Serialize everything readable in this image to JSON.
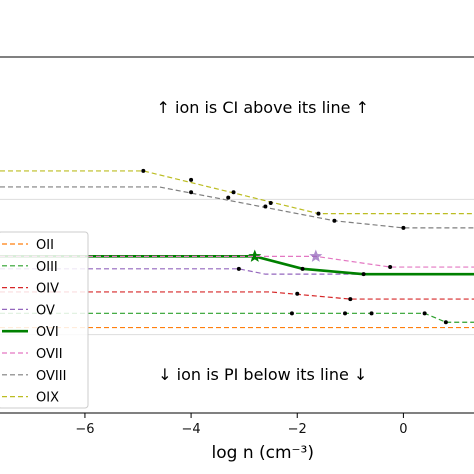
{
  "chart_data": {
    "type": "line",
    "title": "",
    "xlabel": "log n (cm⁻³)",
    "ylabel": "",
    "xlim": [
      -7.6,
      1.33
    ],
    "ylim": [
      0,
      100
    ],
    "xticks": [
      -6,
      -4,
      -2,
      0
    ],
    "xtick_labels": [
      "−6",
      "−4",
      "−2",
      "0"
    ],
    "grid": false,
    "legend_position": "lower-left",
    "annotations": [
      {
        "text": "↑  ion is CI above its line  ↑",
        "x": -2.65,
        "y": 86
      },
      {
        "text": "↓  ion is PI below its line  ↓",
        "x": -2.65,
        "y": 11
      }
    ],
    "reference_lines": [
      {
        "y": 60,
        "color": "#dddddd"
      },
      {
        "y": 22,
        "color": "#dddddd"
      }
    ],
    "series": [
      {
        "name": "OII",
        "color": "#ff7f0e",
        "width": 1.2,
        "dash": "5,3",
        "legend_marker": false,
        "x": [
          -7.6,
          1.33
        ],
        "y": [
          24,
          24
        ],
        "dots": [],
        "stars": []
      },
      {
        "name": "OIII",
        "color": "#2ca02c",
        "width": 1.2,
        "dash": "5,3",
        "legend_marker": false,
        "x": [
          -7.6,
          0.4,
          0.8,
          1.33
        ],
        "y": [
          28,
          28,
          25.5,
          25.5
        ],
        "dots": [
          [
            -2.1,
            28
          ],
          [
            -1.1,
            28
          ],
          [
            -0.6,
            28
          ],
          [
            0.4,
            28
          ],
          [
            0.8,
            25.5
          ]
        ],
        "stars": []
      },
      {
        "name": "OIV",
        "color": "#d62728",
        "width": 1.2,
        "dash": "5,3",
        "legend_marker": false,
        "x": [
          -7.6,
          -2.5,
          -1.0,
          1.33
        ],
        "y": [
          34,
          34,
          32,
          32
        ],
        "dots": [
          [
            -2.0,
            33.5
          ],
          [
            -1.0,
            32
          ]
        ],
        "stars": []
      },
      {
        "name": "OV",
        "color": "#9467bd",
        "width": 1.2,
        "dash": "5,3",
        "legend_marker": false,
        "x": [
          -7.6,
          -3.1,
          -2.6,
          1.33
        ],
        "y": [
          40.5,
          40.5,
          39,
          39
        ],
        "dots": [
          [
            -3.1,
            40.5
          ]
        ],
        "stars": []
      },
      {
        "name": "OVI",
        "color": "#008000",
        "width": 2.6,
        "dash": "",
        "legend_marker": false,
        "x": [
          -7.6,
          -2.8,
          -1.9,
          -0.75,
          1.33
        ],
        "y": [
          44,
          44,
          40.5,
          39,
          39
        ],
        "dots": [
          [
            -1.9,
            40.5
          ],
          [
            -0.75,
            39
          ]
        ],
        "stars": [
          [
            -2.8,
            44,
            "#008000"
          ]
        ]
      },
      {
        "name": "OVII",
        "color": "#e377c2",
        "width": 1.2,
        "dash": "5,3",
        "legend_marker": false,
        "x": [
          -7.6,
          -2.8,
          -1.65,
          -0.25,
          1.33
        ],
        "y": [
          44,
          44,
          44,
          41,
          41
        ],
        "dots": [
          [
            -0.25,
            41
          ]
        ],
        "stars": [
          [
            -1.65,
            44,
            "#9467bd"
          ]
        ]
      },
      {
        "name": "OVIII",
        "color": "#7f7f7f",
        "width": 1.2,
        "dash": "5,3",
        "legend_marker": false,
        "x": [
          -7.6,
          -4.6,
          -1.3,
          0,
          1.33
        ],
        "y": [
          63.5,
          63.5,
          54,
          52,
          52
        ],
        "dots": [
          [
            -4.0,
            62
          ],
          [
            -3.3,
            60.5
          ],
          [
            -2.6,
            58
          ],
          [
            -1.3,
            54
          ],
          [
            0,
            52
          ]
        ],
        "stars": []
      },
      {
        "name": "OIX",
        "color": "#bcbd22",
        "width": 1.2,
        "dash": "5,3",
        "legend_marker": false,
        "x": [
          -7.6,
          -4.9,
          -1.6,
          1.33
        ],
        "y": [
          68,
          68,
          56,
          56
        ],
        "dots": [
          [
            -4.9,
            68
          ],
          [
            -4.0,
            65.5
          ],
          [
            -3.2,
            62
          ],
          [
            -2.5,
            59
          ],
          [
            -1.6,
            56
          ]
        ],
        "stars": []
      }
    ]
  }
}
